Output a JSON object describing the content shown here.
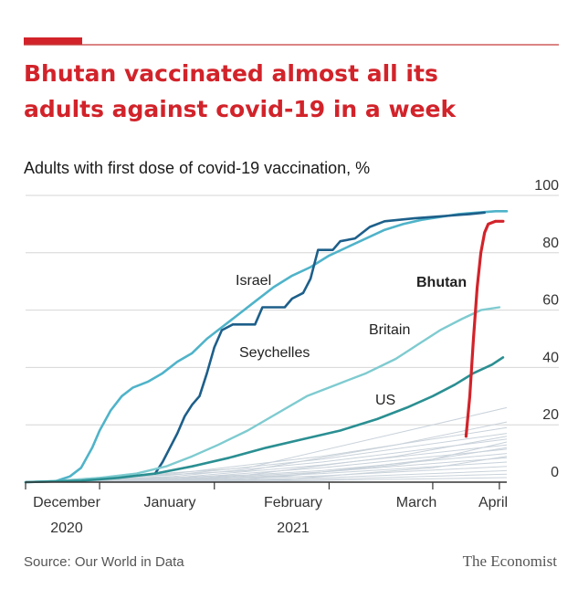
{
  "title_lines": [
    "Bhutan vaccinated almost all its",
    "adults against covid-19 in a week"
  ],
  "subtitle": "Adults with first dose of covid-19 vaccination, %",
  "source": "Source: Our World in Data",
  "brand": "The Economist",
  "colors": {
    "accent": "#d2232a",
    "rule": "#c63a3a",
    "grid": "#d6d6d6",
    "axis": "#333333",
    "israel": "#4fb3c9",
    "seychelles": "#1d5f8a",
    "britain": "#7ecbd0",
    "us": "#2a8f92",
    "bhutan": "#d2232a",
    "background_series": "#c9d2da"
  },
  "chart_data": {
    "type": "line",
    "title": "Bhutan vaccinated almost all its adults against covid-19 in a week",
    "subtitle": "Adults with first dose of covid-19 vaccination, %",
    "x_unit": "days since Dec 1 2020",
    "x_range": [
      0,
      130
    ],
    "ylim": [
      0,
      100
    ],
    "y_ticks": [
      0,
      20,
      40,
      60,
      80,
      100
    ],
    "y_axis_side": "right",
    "x_ticks": [
      {
        "x": 0,
        "line1": "",
        "line2": ""
      },
      {
        "x": 20,
        "line1": "December",
        "line2": "2020"
      },
      {
        "x": 51,
        "line1": "January",
        "line2": ""
      },
      {
        "x": 82,
        "line1": "February",
        "line2": "2021"
      },
      {
        "x": 110,
        "line1": "March",
        "line2": ""
      },
      {
        "x": 128,
        "line1": "April",
        "line2": ""
      }
    ],
    "series": [
      {
        "name": "Israel",
        "label": "Israel",
        "color_key": "israel",
        "width": 2.6,
        "points": [
          [
            0,
            0
          ],
          [
            8,
            0.3
          ],
          [
            12,
            2
          ],
          [
            15,
            5
          ],
          [
            18,
            12
          ],
          [
            20,
            18
          ],
          [
            23,
            25
          ],
          [
            26,
            30
          ],
          [
            29,
            33
          ],
          [
            33,
            35
          ],
          [
            37,
            38
          ],
          [
            41,
            42
          ],
          [
            45,
            45
          ],
          [
            49,
            50
          ],
          [
            53,
            54
          ],
          [
            57,
            58
          ],
          [
            62,
            63
          ],
          [
            67,
            68
          ],
          [
            72,
            72
          ],
          [
            77,
            75
          ],
          [
            82,
            79
          ],
          [
            87,
            82
          ],
          [
            92,
            85
          ],
          [
            97,
            88
          ],
          [
            102,
            90
          ],
          [
            107,
            91.5
          ],
          [
            112,
            92.5
          ],
          [
            117,
            93.5
          ],
          [
            122,
            94
          ],
          [
            127,
            94.5
          ],
          [
            130,
            94.5
          ]
        ]
      },
      {
        "name": "Seychelles",
        "label": "Seychelles",
        "color_key": "seychelles",
        "width": 2.6,
        "points": [
          [
            35,
            3
          ],
          [
            37,
            7
          ],
          [
            39,
            12
          ],
          [
            41,
            17
          ],
          [
            43,
            23
          ],
          [
            45,
            27
          ],
          [
            47,
            30
          ],
          [
            49,
            38
          ],
          [
            51,
            47
          ],
          [
            53,
            53
          ],
          [
            56,
            55
          ],
          [
            59,
            55
          ],
          [
            62,
            55
          ],
          [
            64,
            61
          ],
          [
            67,
            61
          ],
          [
            70,
            61
          ],
          [
            72,
            64
          ],
          [
            75,
            66
          ],
          [
            77,
            71
          ],
          [
            79,
            81
          ],
          [
            81,
            81
          ],
          [
            83,
            81
          ],
          [
            85,
            84
          ],
          [
            89,
            85
          ],
          [
            93,
            89
          ],
          [
            97,
            91
          ],
          [
            101,
            91.5
          ],
          [
            105,
            92
          ],
          [
            110,
            92.5
          ],
          [
            115,
            93
          ],
          [
            120,
            93.5
          ],
          [
            124,
            94
          ]
        ]
      },
      {
        "name": "Britain",
        "label": "Britain",
        "color_key": "britain",
        "width": 2.4,
        "points": [
          [
            0,
            0
          ],
          [
            10,
            0.5
          ],
          [
            20,
            1.5
          ],
          [
            30,
            3
          ],
          [
            38,
            5.5
          ],
          [
            45,
            9
          ],
          [
            52,
            13
          ],
          [
            60,
            18
          ],
          [
            68,
            24
          ],
          [
            76,
            30
          ],
          [
            84,
            34
          ],
          [
            92,
            38
          ],
          [
            100,
            43
          ],
          [
            106,
            48
          ],
          [
            112,
            53
          ],
          [
            118,
            57
          ],
          [
            123,
            60
          ],
          [
            128,
            61
          ]
        ]
      },
      {
        "name": "US",
        "label": "US",
        "color_key": "us",
        "width": 2.6,
        "points": [
          [
            0,
            0
          ],
          [
            15,
            0.5
          ],
          [
            25,
            1.5
          ],
          [
            35,
            3
          ],
          [
            45,
            5.5
          ],
          [
            55,
            8.5
          ],
          [
            65,
            12
          ],
          [
            75,
            15
          ],
          [
            85,
            18
          ],
          [
            95,
            22
          ],
          [
            103,
            26
          ],
          [
            110,
            30
          ],
          [
            116,
            34
          ],
          [
            121,
            38
          ],
          [
            126,
            41
          ],
          [
            129,
            43.5
          ]
        ]
      },
      {
        "name": "Bhutan",
        "label": "Bhutan",
        "color_key": "bhutan",
        "width": 3.2,
        "points": [
          [
            119,
            16
          ],
          [
            120,
            30
          ],
          [
            121,
            50
          ],
          [
            122,
            68
          ],
          [
            123,
            80
          ],
          [
            124,
            87
          ],
          [
            125,
            90
          ],
          [
            127,
            91
          ],
          [
            129,
            91
          ]
        ]
      }
    ],
    "background_series": [
      {
        "points": [
          [
            0,
            0
          ],
          [
            40,
            3
          ],
          [
            80,
            9
          ],
          [
            130,
            19
          ]
        ]
      },
      {
        "points": [
          [
            0,
            0
          ],
          [
            40,
            2.5
          ],
          [
            80,
            8
          ],
          [
            130,
            17
          ]
        ]
      },
      {
        "points": [
          [
            0,
            0
          ],
          [
            40,
            2
          ],
          [
            80,
            7
          ],
          [
            130,
            15
          ]
        ]
      },
      {
        "points": [
          [
            0,
            0
          ],
          [
            40,
            1.5
          ],
          [
            80,
            6
          ],
          [
            130,
            13
          ]
        ]
      },
      {
        "points": [
          [
            0,
            0
          ],
          [
            40,
            1.2
          ],
          [
            80,
            5
          ],
          [
            130,
            11.5
          ]
        ]
      },
      {
        "points": [
          [
            0,
            0
          ],
          [
            40,
            1
          ],
          [
            80,
            4
          ],
          [
            130,
            10
          ]
        ]
      },
      {
        "points": [
          [
            0,
            0
          ],
          [
            40,
            0.8
          ],
          [
            80,
            3.5
          ],
          [
            130,
            8.5
          ]
        ]
      },
      {
        "points": [
          [
            0,
            0
          ],
          [
            40,
            0.6
          ],
          [
            80,
            3
          ],
          [
            130,
            7
          ]
        ]
      },
      {
        "points": [
          [
            0,
            0
          ],
          [
            40,
            0.5
          ],
          [
            80,
            2.2
          ],
          [
            130,
            5.5
          ]
        ]
      },
      {
        "points": [
          [
            0,
            0
          ],
          [
            40,
            0.3
          ],
          [
            80,
            1.5
          ],
          [
            130,
            4
          ]
        ]
      },
      {
        "points": [
          [
            0,
            0
          ],
          [
            40,
            0.2
          ],
          [
            80,
            1
          ],
          [
            130,
            2.8
          ]
        ]
      },
      {
        "points": [
          [
            0,
            0
          ],
          [
            40,
            0.1
          ],
          [
            80,
            0.6
          ],
          [
            130,
            1.6
          ]
        ]
      },
      {
        "points": [
          [
            0,
            0
          ],
          [
            60,
            1
          ],
          [
            100,
            6
          ],
          [
            130,
            12
          ]
        ]
      },
      {
        "points": [
          [
            0,
            0
          ],
          [
            60,
            2.5
          ],
          [
            100,
            9
          ],
          [
            130,
            16
          ]
        ]
      },
      {
        "points": [
          [
            0,
            0
          ],
          [
            60,
            4
          ],
          [
            100,
            13
          ],
          [
            130,
            21
          ]
        ]
      },
      {
        "points": [
          [
            0,
            0
          ],
          [
            60,
            5
          ],
          [
            100,
            17
          ],
          [
            130,
            26
          ]
        ]
      },
      {
        "points": [
          [
            0,
            0
          ],
          [
            70,
            2
          ],
          [
            110,
            8
          ],
          [
            130,
            14
          ]
        ]
      },
      {
        "points": [
          [
            0,
            0
          ],
          [
            70,
            1
          ],
          [
            110,
            5
          ],
          [
            130,
            9
          ]
        ]
      }
    ]
  }
}
